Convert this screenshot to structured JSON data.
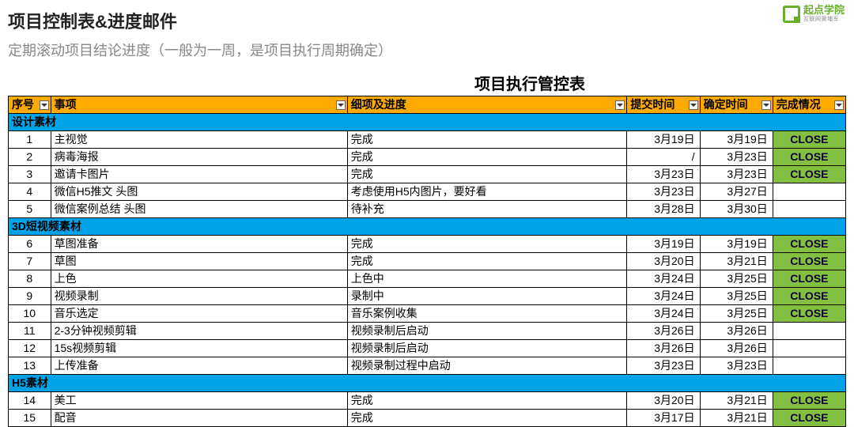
{
  "logo": {
    "name": "起点学院",
    "sub": "互联网黄埔军"
  },
  "page": {
    "title": "项目控制表&进度邮件",
    "subtitle": "定期滚动项目结论进度（一般为一周，是项目执行周期确定）",
    "sheet_title": "项目执行管控表"
  },
  "columns": {
    "seq": "序号",
    "item": "事项",
    "detail": "细项及进度",
    "submit": "提交时间",
    "confirm": "确定时间",
    "status": "完成情况"
  },
  "colors": {
    "header_bg": "#ffaa00",
    "section_bg": "#00a2e8",
    "close_bg": "#81c040",
    "border": "#000000",
    "subtitle": "#888888",
    "logo": "#6aae2f"
  },
  "sections": [
    {
      "label": "设计素材",
      "rows": [
        {
          "seq": "1",
          "item": "主视觉",
          "detail": "完成",
          "submit": "3月19日",
          "confirm": "3月19日",
          "status": "CLOSE"
        },
        {
          "seq": "2",
          "item": "病毒海报",
          "detail": "完成",
          "submit": "/",
          "confirm": "3月23日",
          "status": "CLOSE"
        },
        {
          "seq": "3",
          "item": "邀请卡图片",
          "detail": "完成",
          "submit": "3月23日",
          "confirm": "3月23日",
          "status": "CLOSE"
        },
        {
          "seq": "4",
          "item": "微信H5推文 头图",
          "detail": "考虑使用H5内图片，要好看",
          "submit": "3月23日",
          "confirm": "3月27日",
          "status": ""
        },
        {
          "seq": "5",
          "item": "微信案例总结 头图",
          "detail": "待补充",
          "submit": "3月28日",
          "confirm": "3月30日",
          "status": ""
        }
      ]
    },
    {
      "label": "3D短视频素材",
      "rows": [
        {
          "seq": "6",
          "item": "草图准备",
          "detail": "完成",
          "submit": "3月19日",
          "confirm": "3月19日",
          "status": "CLOSE"
        },
        {
          "seq": "7",
          "item": "草图",
          "detail": "完成",
          "submit": "3月20日",
          "confirm": "3月21日",
          "status": "CLOSE"
        },
        {
          "seq": "8",
          "item": "上色",
          "detail": "上色中",
          "submit": "3月24日",
          "confirm": "3月25日",
          "status": "CLOSE"
        },
        {
          "seq": "9",
          "item": "视频录制",
          "detail": "录制中",
          "submit": "3月24日",
          "confirm": "3月25日",
          "status": "CLOSE"
        },
        {
          "seq": "10",
          "item": "音乐选定",
          "detail": "音乐案例收集",
          "submit": "3月24日",
          "confirm": "3月25日",
          "status": "CLOSE"
        },
        {
          "seq": "11",
          "item": "2-3分钟视频剪辑",
          "detail": "视频录制后启动",
          "submit": "3月26日",
          "confirm": "3月26日",
          "status": ""
        },
        {
          "seq": "12",
          "item": "15s视频剪辑",
          "detail": "视频录制后启动",
          "submit": "3月26日",
          "confirm": "3月26日",
          "status": ""
        },
        {
          "seq": "13",
          "item": "上传准备",
          "detail": "视频录制过程中启动",
          "submit": "3月23日",
          "confirm": "3月23日",
          "status": ""
        }
      ]
    },
    {
      "label": "H5素材",
      "rows": [
        {
          "seq": "14",
          "item": "美工",
          "detail": "完成",
          "submit": "3月20日",
          "confirm": "3月21日",
          "status": "CLOSE"
        },
        {
          "seq": "15",
          "item": "配音",
          "detail": "完成",
          "submit": "3月17日",
          "confirm": "3月21日",
          "status": "CLOSE"
        }
      ]
    }
  ]
}
